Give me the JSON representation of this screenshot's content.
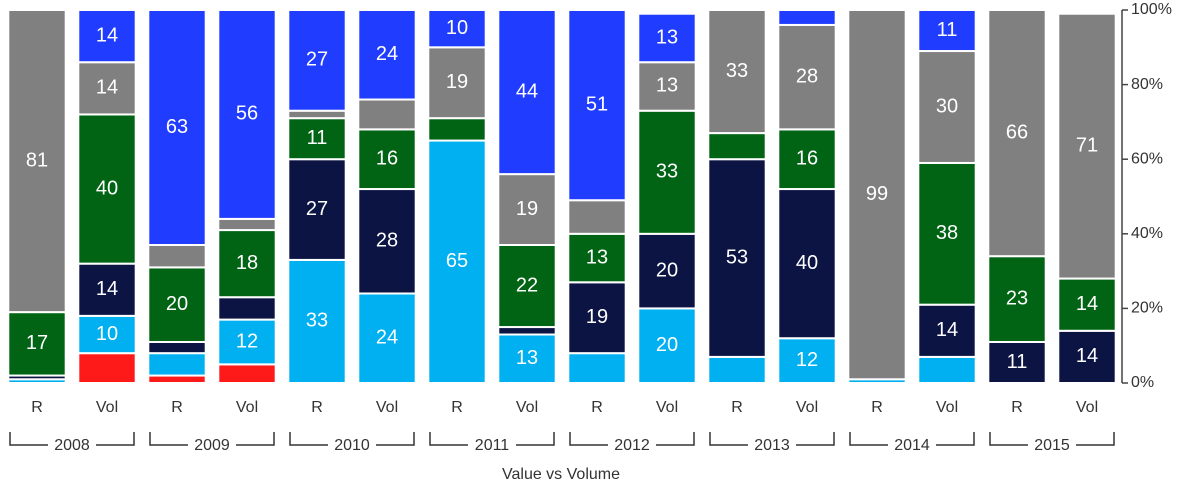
{
  "chart_data": {
    "type": "stacked_bar",
    "categories": [
      "R",
      "Vol",
      "R",
      "Vol",
      "R",
      "Vol",
      "R",
      "Vol",
      "R",
      "Vol",
      "R",
      "Vol",
      "R",
      "Vol",
      "R",
      "Vol"
    ],
    "groups": [
      "2008",
      "2009",
      "2010",
      "2011",
      "2012",
      "2013",
      "2014",
      "2015"
    ],
    "xlabel": "Value vs Volume",
    "series": [
      {
        "color": "#ff1a1a",
        "values": [
          0,
          8,
          2,
          5,
          0,
          0,
          0,
          0,
          0,
          0,
          0,
          0,
          0,
          0,
          0,
          0
        ]
      },
      {
        "color": "#00b0f0",
        "values": [
          1,
          10,
          6,
          12,
          33,
          24,
          65,
          13,
          8,
          20,
          7,
          12,
          1,
          7,
          0,
          0
        ]
      },
      {
        "color": "#0c1444",
        "values": [
          1,
          14,
          3,
          6,
          27,
          28,
          0,
          2,
          19,
          20,
          53,
          40,
          0,
          14,
          11,
          14
        ]
      },
      {
        "color": "#006414",
        "values": [
          17,
          40,
          20,
          18,
          11,
          16,
          6,
          22,
          13,
          33,
          7,
          16,
          0,
          38,
          23,
          14
        ]
      },
      {
        "color": "#808080",
        "values": [
          81,
          14,
          6,
          3,
          2,
          8,
          19,
          19,
          9,
          13,
          33,
          28,
          99,
          30,
          66,
          71
        ]
      },
      {
        "color": "#1f3cff",
        "values": [
          0,
          14,
          63,
          56,
          27,
          24,
          10,
          44,
          51,
          13,
          0,
          4,
          0,
          11,
          0,
          0
        ]
      }
    ],
    "ylim": [
      0,
      100
    ],
    "yticks": [
      {
        "value": 0,
        "label": "0%"
      },
      {
        "value": 20,
        "label": "20%"
      },
      {
        "value": 40,
        "label": "40%"
      },
      {
        "value": 60,
        "label": "60%"
      },
      {
        "value": 80,
        "label": "80%"
      },
      {
        "value": 100,
        "label": "100%"
      }
    ]
  }
}
